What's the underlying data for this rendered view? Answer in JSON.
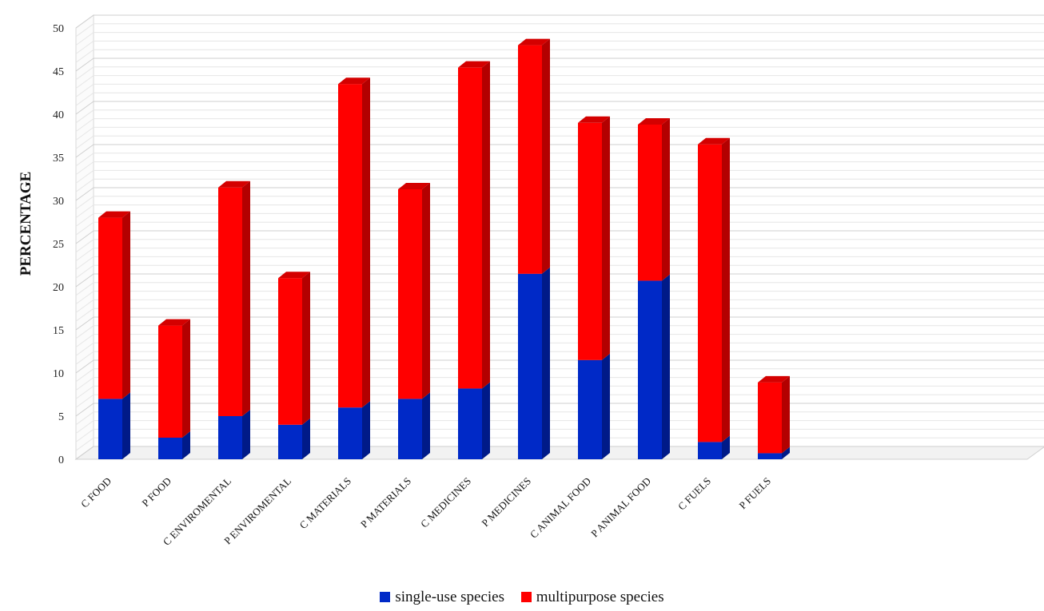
{
  "chart_data": {
    "type": "bar",
    "stacked": true,
    "three_d": true,
    "ylabel": "PERCENTAGE",
    "ylim": [
      0,
      50
    ],
    "yticks": [
      "0",
      "5",
      "10",
      "15",
      "20",
      "25",
      "30",
      "35",
      "40",
      "45",
      "50"
    ],
    "grid": true,
    "legend_position": "bottom",
    "categories": [
      "C FOOD",
      "P FOOD",
      "C ENVIROMENTAL",
      "P ENVIROMENTAL",
      "C MATERIALS",
      "P MATERIALS",
      "C MEDICINES",
      "P MEDICINES",
      "C ANIMAL FOOD",
      "P ANIMAL FOOD",
      "C FUELS",
      "P FUELS"
    ],
    "series": [
      {
        "name": "single-use species",
        "color": "#0029c7",
        "values": [
          7,
          2.5,
          5,
          4,
          6,
          7,
          8.2,
          21.5,
          11.5,
          20.7,
          2,
          0.7
        ]
      },
      {
        "name": "multipurpose species",
        "color": "#ff0000",
        "values": [
          21,
          13,
          26.5,
          17,
          37.5,
          24.3,
          37.2,
          26.5,
          27.5,
          18.1,
          34.5,
          8.2
        ]
      }
    ]
  }
}
